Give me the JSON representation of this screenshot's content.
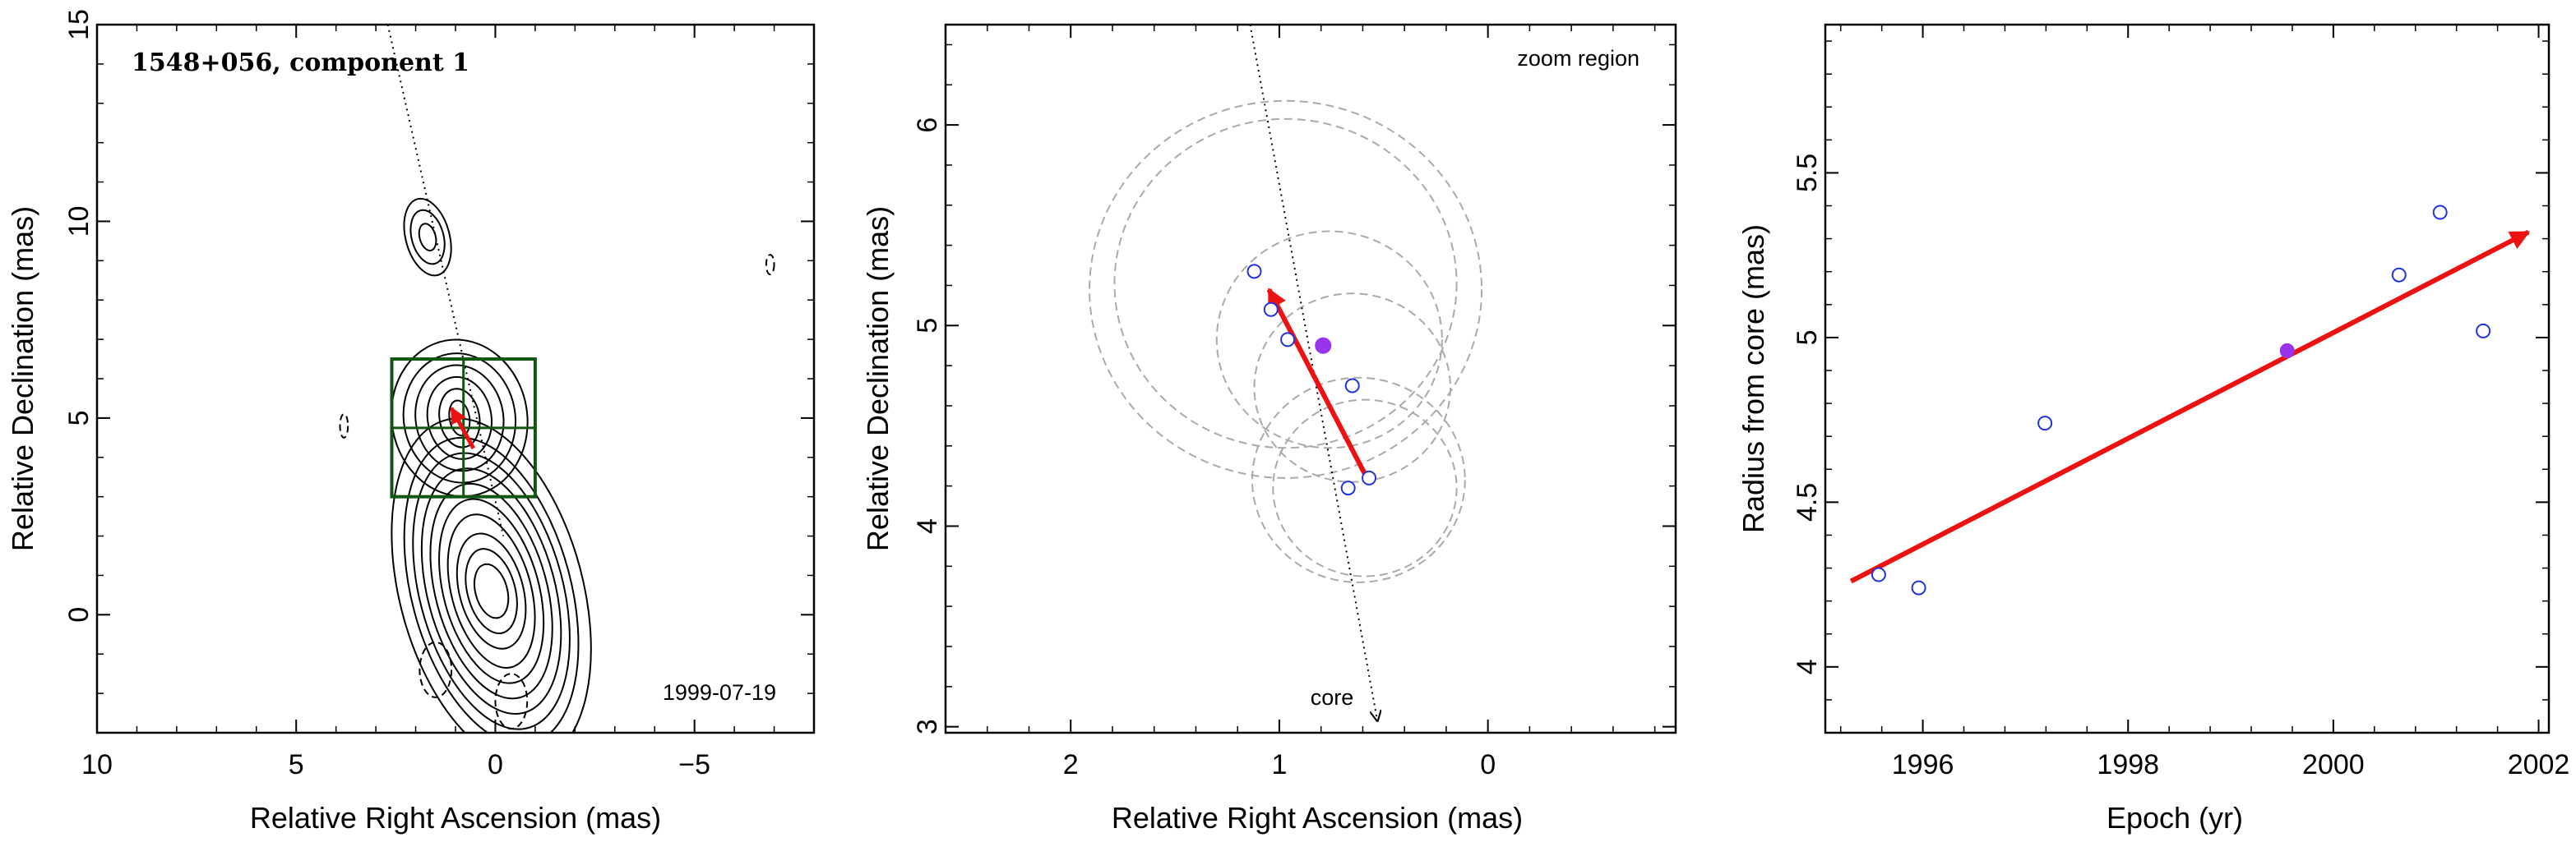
{
  "chart_data": [
    {
      "type": "scatter",
      "panel": "contour-map",
      "title": "1548+056, component 1",
      "epoch_label": "1999-07-19",
      "xlabel": "Relative Right Ascension (mas)",
      "ylabel": "Relative Declination (mas)",
      "xlim": [
        10,
        -8
      ],
      "ylim": [
        -3,
        15
      ],
      "xticks": [
        10,
        5,
        0,
        -5
      ],
      "xtick_labels": [
        "10",
        "5",
        "0",
        "−5"
      ],
      "yticks": [
        0,
        5,
        10,
        15
      ],
      "ytick_labels": [
        "0",
        "5",
        "10",
        "15"
      ],
      "zoom_box": {
        "x": [
          -1.0,
          2.6
        ],
        "y": [
          3.0,
          6.5
        ]
      },
      "trajectory_line": {
        "x": [
          2.7,
          -0.2
        ],
        "y": [
          15,
          2.0
        ]
      },
      "motion_vector": {
        "from": [
          0.55,
          4.23
        ],
        "to": [
          1.1,
          5.25
        ]
      },
      "contour_sets": [
        {
          "center": [
            0.1,
            0.6
          ],
          "rx": [
            0.4,
            0.6,
            0.8,
            1.0,
            1.2,
            1.4,
            1.6,
            1.8,
            2.0,
            2.3
          ],
          "ry": [
            0.7,
            1.1,
            1.5,
            2.0,
            2.4,
            2.8,
            3.2,
            3.6,
            4.0,
            4.5
          ],
          "angle": -15
        },
        {
          "center": [
            0.9,
            5.0
          ],
          "rx": [
            0.25,
            0.5,
            0.8,
            1.1,
            1.4,
            1.7
          ],
          "ry": [
            0.45,
            0.75,
            1.05,
            1.35,
            1.65,
            2.0
          ],
          "angle": -10
        },
        {
          "center": [
            1.7,
            9.6
          ],
          "rx": [
            0.2,
            0.4,
            0.55
          ],
          "ry": [
            0.35,
            0.7,
            1.0
          ],
          "angle": -15
        }
      ],
      "negative_contours": [
        {
          "center": [
            1.5,
            -1.4
          ],
          "rx": 0.4,
          "ry": 0.7
        },
        {
          "center": [
            -0.4,
            -2.2
          ],
          "rx": 0.4,
          "ry": 0.7
        },
        {
          "center": [
            3.8,
            4.8
          ],
          "rx": 0.1,
          "ry": 0.3
        },
        {
          "center": [
            -6.9,
            8.9
          ],
          "rx": 0.1,
          "ry": 0.25
        }
      ]
    },
    {
      "type": "scatter",
      "panel": "zoom",
      "annotation": "zoom region",
      "core_label": "core",
      "xlabel": "Relative Right Ascension (mas)",
      "ylabel": "Relative Declination (mas)",
      "xlim": [
        2.6,
        -0.9
      ],
      "ylim": [
        2.97,
        6.5
      ],
      "xticks": [
        2,
        1,
        0
      ],
      "xtick_labels": [
        "2",
        "1",
        "0"
      ],
      "yticks": [
        3,
        4,
        5,
        6
      ],
      "ytick_labels": [
        "3",
        "4",
        "5",
        "6"
      ],
      "points": [
        {
          "x": 1.12,
          "y": 5.27
        },
        {
          "x": 1.04,
          "y": 5.08
        },
        {
          "x": 0.96,
          "y": 4.93
        },
        {
          "x": 0.65,
          "y": 4.7
        },
        {
          "x": 0.57,
          "y": 4.24
        },
        {
          "x": 0.67,
          "y": 4.19
        }
      ],
      "highlight_point": {
        "x": 0.79,
        "y": 4.9
      },
      "error_circles": [
        {
          "x": 0.97,
          "y": 5.18,
          "r": 0.94
        },
        {
          "x": 0.97,
          "y": 5.21,
          "r": 0.82
        },
        {
          "x": 0.76,
          "y": 4.93,
          "r": 0.54
        },
        {
          "x": 0.65,
          "y": 4.69,
          "r": 0.47
        },
        {
          "x": 0.62,
          "y": 4.23,
          "r": 0.51
        },
        {
          "x": 0.59,
          "y": 4.19,
          "r": 0.44
        }
      ],
      "trajectory_line": {
        "x": [
          1.14,
          0.53
        ],
        "y": [
          6.5,
          3.03
        ]
      },
      "motion_vector": {
        "from": [
          0.58,
          4.24
        ],
        "to": [
          1.05,
          5.18
        ]
      }
    },
    {
      "type": "scatter",
      "panel": "radius-vs-epoch",
      "xlabel": "Epoch (yr)",
      "ylabel": "Radius from core (mas)",
      "xlim": [
        1995.05,
        2002.1
      ],
      "ylim": [
        3.8,
        5.95
      ],
      "xticks": [
        1996,
        1998,
        2000,
        2002
      ],
      "xtick_labels": [
        "1996",
        "1998",
        "2000",
        "2002"
      ],
      "yticks": [
        4,
        4.5,
        5,
        5.5
      ],
      "ytick_labels": [
        "4",
        "4.5",
        "5",
        "5.5"
      ],
      "points": [
        {
          "x": 1995.57,
          "y": 4.28
        },
        {
          "x": 1995.96,
          "y": 4.24
        },
        {
          "x": 1997.19,
          "y": 4.74
        },
        {
          "x": 2000.64,
          "y": 5.19
        },
        {
          "x": 2001.04,
          "y": 5.38
        },
        {
          "x": 2001.46,
          "y": 5.02
        }
      ],
      "highlight_point": {
        "x": 1999.55,
        "y": 4.96
      },
      "fit_arrow": {
        "from": [
          1995.3,
          4.26
        ],
        "to": [
          2001.9,
          5.32
        ]
      }
    }
  ],
  "colors": {
    "fit": "#ee1111",
    "points": "#2233dd",
    "highlight": "#9933ee",
    "zoom_box": "#115511",
    "error_circles": "#aaaaaa",
    "axes": "#000000"
  }
}
